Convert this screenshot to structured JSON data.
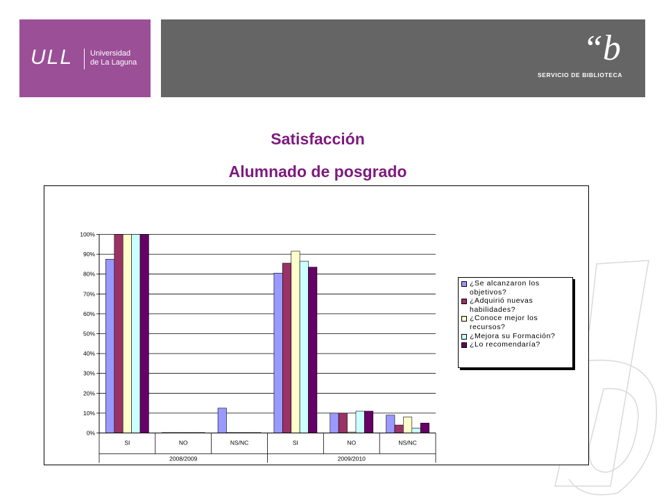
{
  "header": {
    "ull_logo": "ULL",
    "ull_name_line1": "Universidad",
    "ull_name_line2": "de La Laguna",
    "biblioteca_logo": "“b",
    "biblioteca_text": "SERVICIO DE BIBLIOTECA"
  },
  "titles": {
    "line1": "Satisfacción",
    "line2": "Alumnado de posgrado"
  },
  "chart_data": {
    "type": "bar",
    "groups": [
      "2008/2009",
      "2009/2010"
    ],
    "categories": [
      "SI",
      "NO",
      "NS/NC",
      "SI",
      "NO",
      "NS/NC"
    ],
    "category_group": [
      0,
      0,
      0,
      1,
      1,
      1
    ],
    "y_ticks": [
      "0%",
      "10%",
      "20%",
      "30%",
      "40%",
      "50%",
      "60%",
      "70%",
      "80%",
      "90%",
      "100%"
    ],
    "ylim": [
      0,
      100
    ],
    "grid": true,
    "legend_position": "right",
    "series": [
      {
        "name": "¿Se alcanzaron los objetivos?",
        "color": "#9999ff",
        "values": [
          87.5,
          0,
          12.5,
          80.5,
          10,
          9
        ]
      },
      {
        "name": "¿Adquirió nuevas habilidades?",
        "color": "#993366",
        "values": [
          100,
          0,
          0,
          85.5,
          10,
          4
        ]
      },
      {
        "name": "¿Conoce mejor los recursos?",
        "color": "#ffffcc",
        "values": [
          100,
          0,
          0,
          91.5,
          0.5,
          8
        ]
      },
      {
        "name": "¿Mejora su Formación?",
        "color": "#ccffff",
        "values": [
          100,
          0,
          0,
          86.5,
          11,
          2.5
        ]
      },
      {
        "name": "¿Lo recomendaría?",
        "color": "#660066",
        "values": [
          100,
          0,
          0,
          83.5,
          11,
          5
        ]
      }
    ]
  }
}
